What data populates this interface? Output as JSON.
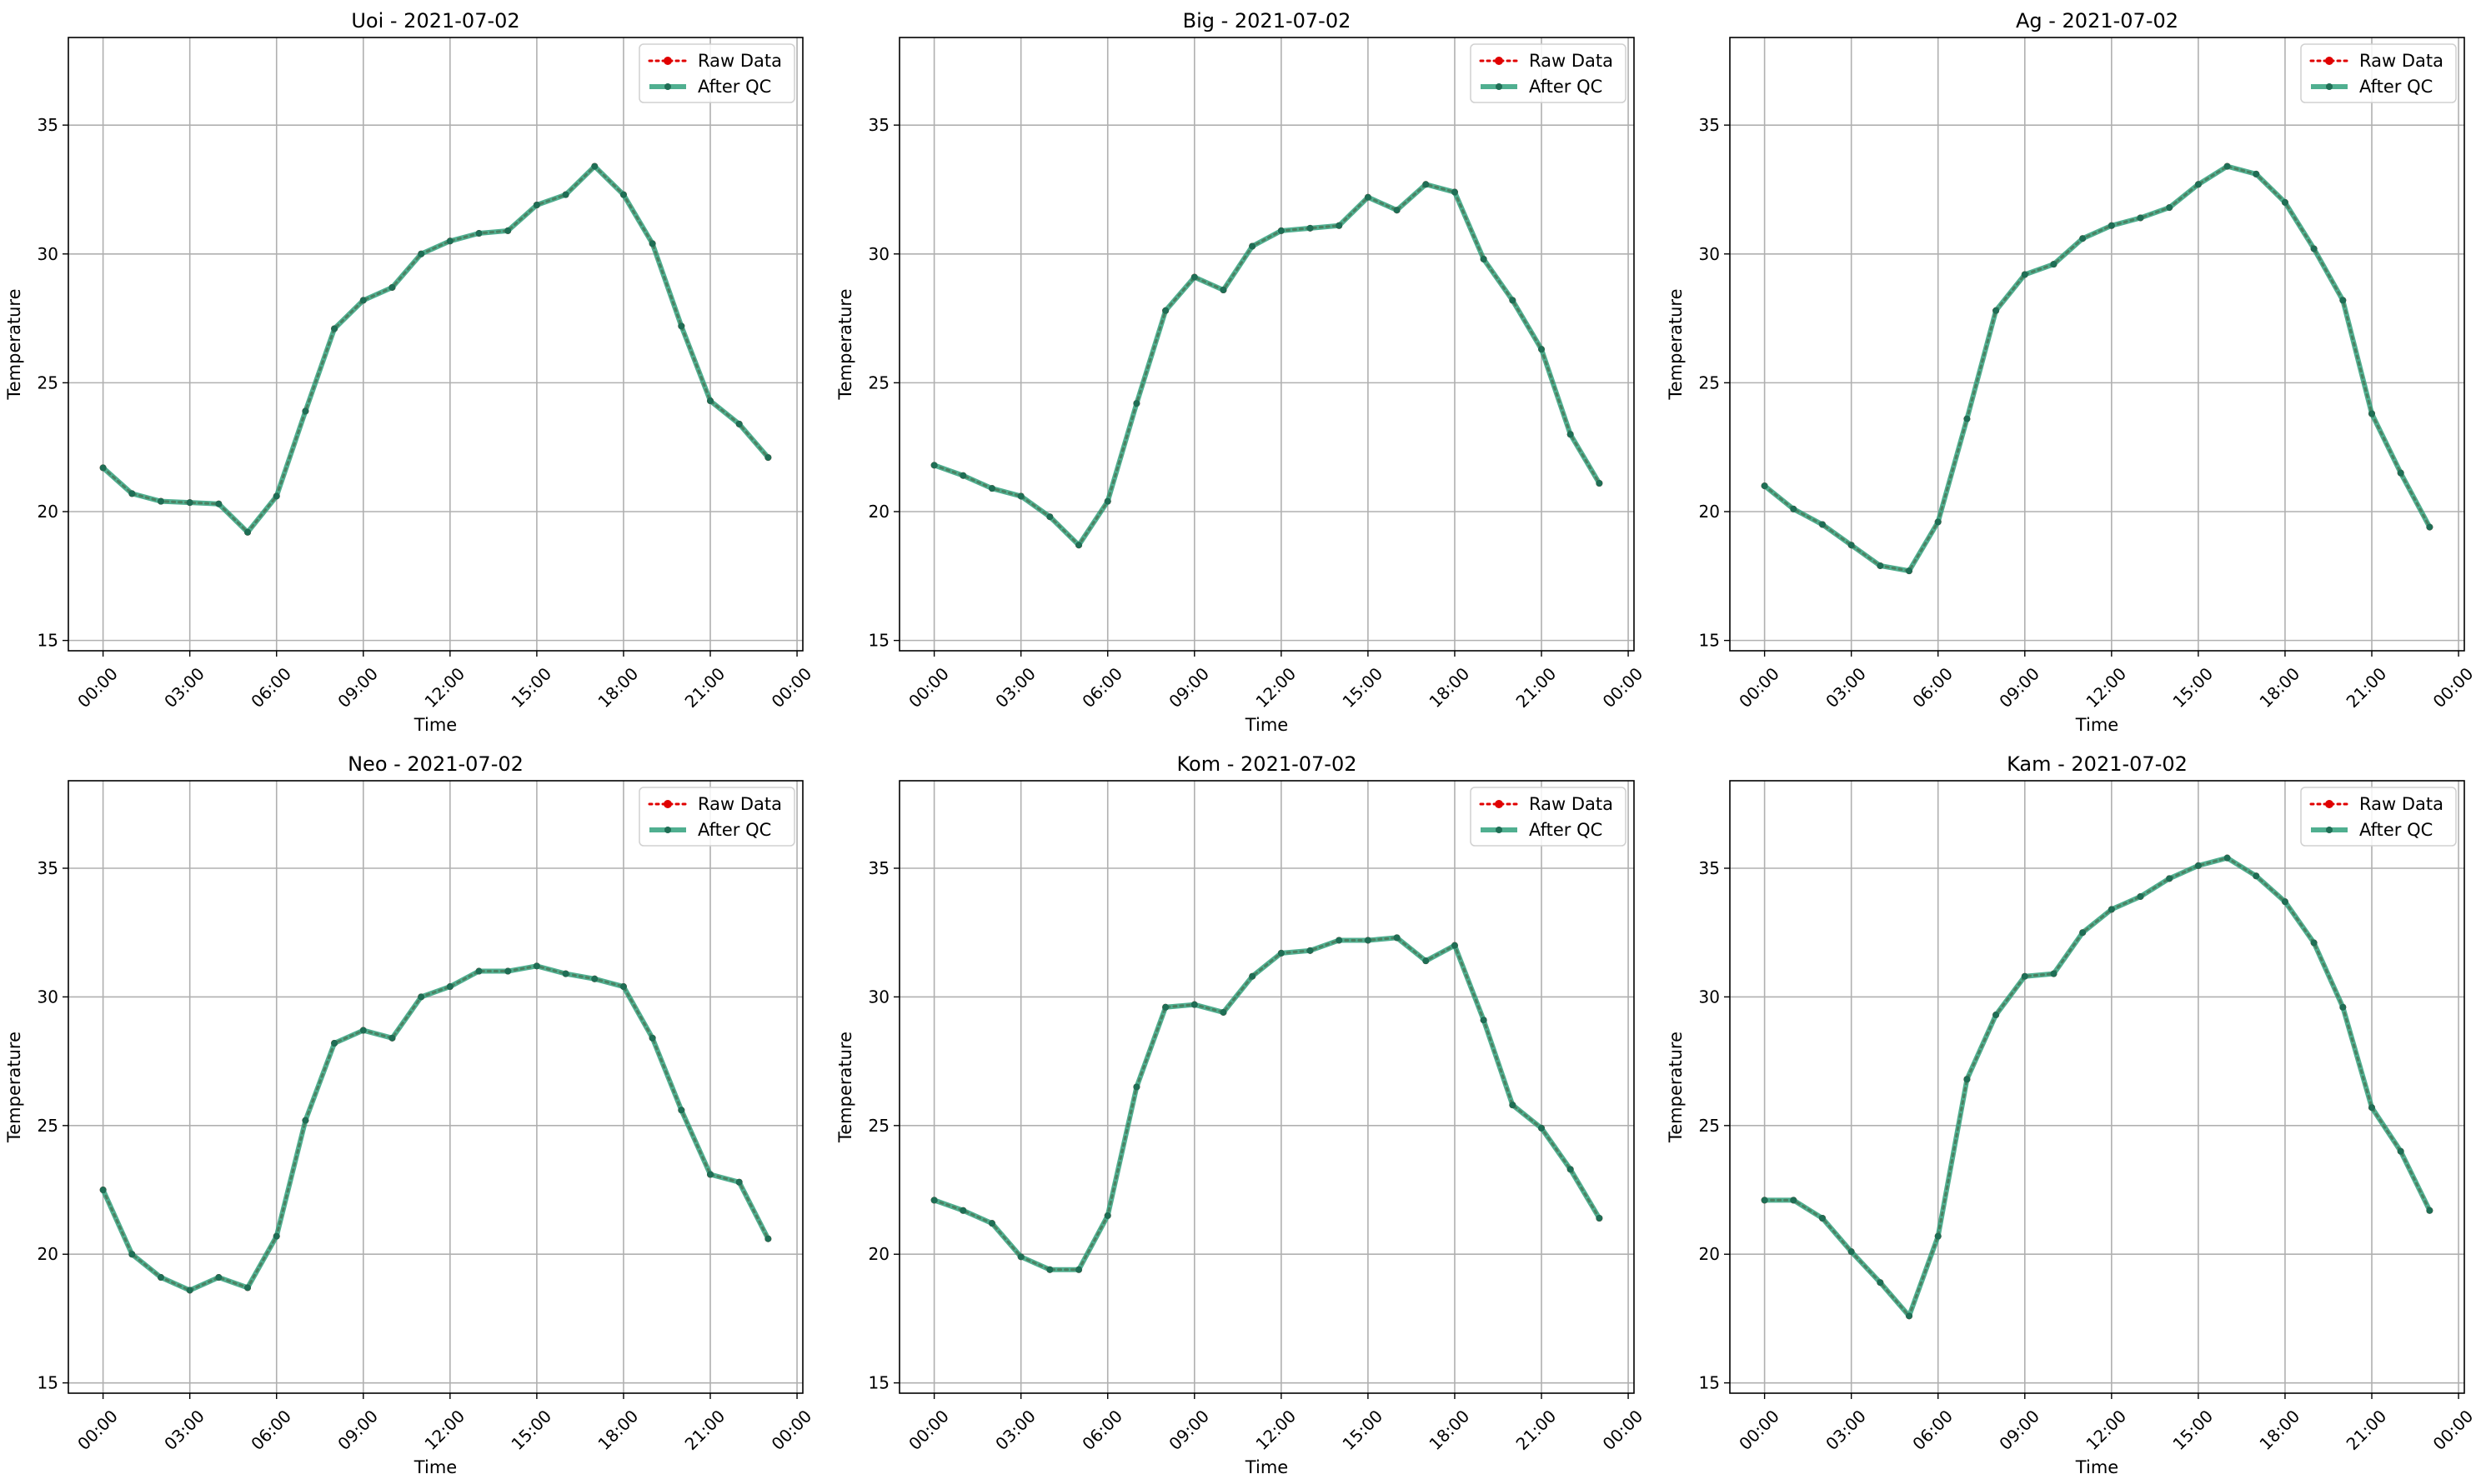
{
  "colors": {
    "raw": "#e00000",
    "qc": "#2a9d78",
    "qc_marker": "#1f6e55",
    "grid": "#b0b0b0",
    "axes": "#000000"
  },
  "chart_data": [
    {
      "type": "line",
      "title": "Uoi - 2021-07-02",
      "xlabel": "Time",
      "ylabel": "Temperature",
      "x_ticks": [
        "00:00",
        "03:00",
        "06:00",
        "09:00",
        "12:00",
        "15:00",
        "18:00",
        "21:00",
        "00:00"
      ],
      "y_ticks": [
        "15",
        "20",
        "25",
        "30",
        "35"
      ],
      "xlim": [
        -1.2,
        24.2
      ],
      "ylim": [
        14.6,
        38.4
      ],
      "grid": true,
      "legend_position": "top-right",
      "x_hours": [
        0,
        1,
        2,
        3,
        4,
        5,
        6,
        7,
        8,
        9,
        10,
        11,
        12,
        13,
        14,
        15,
        16,
        17,
        18,
        19,
        20,
        21,
        22,
        23
      ],
      "series": [
        {
          "name": "Raw Data",
          "style": "dotted-red-markers",
          "values": [
            21.7,
            20.7,
            20.4,
            20.35,
            20.3,
            19.2,
            20.6,
            23.9,
            27.1,
            28.2,
            28.7,
            30.0,
            30.5,
            30.8,
            30.9,
            31.9,
            32.3,
            33.4,
            32.3,
            30.4,
            27.2,
            24.3,
            23.4,
            22.1
          ]
        },
        {
          "name": "After QC",
          "style": "solid-green-markers",
          "values": [
            21.7,
            20.7,
            20.4,
            20.35,
            20.3,
            19.2,
            20.6,
            23.9,
            27.1,
            28.2,
            28.7,
            30.0,
            30.5,
            30.8,
            30.9,
            31.9,
            32.3,
            33.4,
            32.3,
            30.4,
            27.2,
            24.3,
            23.4,
            22.1
          ]
        }
      ]
    },
    {
      "type": "line",
      "title": "Big - 2021-07-02",
      "xlabel": "Time",
      "ylabel": "Temperature",
      "x_ticks": [
        "00:00",
        "03:00",
        "06:00",
        "09:00",
        "12:00",
        "15:00",
        "18:00",
        "21:00",
        "00:00"
      ],
      "y_ticks": [
        "15",
        "20",
        "25",
        "30",
        "35"
      ],
      "xlim": [
        -1.2,
        24.2
      ],
      "ylim": [
        14.6,
        38.4
      ],
      "grid": true,
      "legend_position": "top-right",
      "x_hours": [
        0,
        1,
        2,
        3,
        4,
        5,
        6,
        7,
        8,
        9,
        10,
        11,
        12,
        13,
        14,
        15,
        16,
        17,
        18,
        19,
        20,
        21,
        22,
        23
      ],
      "series": [
        {
          "name": "Raw Data",
          "style": "dotted-red-markers",
          "values": [
            21.8,
            21.4,
            20.9,
            20.6,
            19.8,
            18.7,
            20.4,
            24.2,
            27.8,
            29.1,
            28.6,
            30.3,
            30.9,
            31.0,
            31.1,
            32.2,
            31.7,
            32.7,
            32.4,
            29.8,
            28.2,
            26.3,
            23.0,
            21.1
          ]
        },
        {
          "name": "After QC",
          "style": "solid-green-markers",
          "values": [
            21.8,
            21.4,
            20.9,
            20.6,
            19.8,
            18.7,
            20.4,
            24.2,
            27.8,
            29.1,
            28.6,
            30.3,
            30.9,
            31.0,
            31.1,
            32.2,
            31.7,
            32.7,
            32.4,
            29.8,
            28.2,
            26.3,
            23.0,
            21.1
          ]
        }
      ]
    },
    {
      "type": "line",
      "title": "Ag - 2021-07-02",
      "xlabel": "Time",
      "ylabel": "Temperature",
      "x_ticks": [
        "00:00",
        "03:00",
        "06:00",
        "09:00",
        "12:00",
        "15:00",
        "18:00",
        "21:00",
        "00:00"
      ],
      "y_ticks": [
        "15",
        "20",
        "25",
        "30",
        "35"
      ],
      "xlim": [
        -1.2,
        24.2
      ],
      "ylim": [
        14.6,
        38.4
      ],
      "grid": true,
      "legend_position": "top-right",
      "x_hours": [
        0,
        1,
        2,
        3,
        4,
        5,
        6,
        7,
        8,
        9,
        10,
        11,
        12,
        13,
        14,
        15,
        16,
        17,
        18,
        19,
        20,
        21,
        22,
        23
      ],
      "series": [
        {
          "name": "Raw Data",
          "style": "dotted-red-markers",
          "values": [
            21.0,
            20.1,
            19.5,
            18.7,
            17.9,
            17.7,
            19.6,
            23.6,
            27.8,
            29.2,
            29.6,
            30.6,
            31.1,
            31.4,
            31.8,
            32.7,
            33.4,
            33.1,
            32.0,
            30.2,
            28.2,
            23.8,
            21.5,
            19.4
          ]
        },
        {
          "name": "After QC",
          "style": "solid-green-markers",
          "values": [
            21.0,
            20.1,
            19.5,
            18.7,
            17.9,
            17.7,
            19.6,
            23.6,
            27.8,
            29.2,
            29.6,
            30.6,
            31.1,
            31.4,
            31.8,
            32.7,
            33.4,
            33.1,
            32.0,
            30.2,
            28.2,
            23.8,
            21.5,
            19.4
          ]
        }
      ]
    },
    {
      "type": "line",
      "title": "Neo - 2021-07-02",
      "xlabel": "Time",
      "ylabel": "Temperature",
      "x_ticks": [
        "00:00",
        "03:00",
        "06:00",
        "09:00",
        "12:00",
        "15:00",
        "18:00",
        "21:00",
        "00:00"
      ],
      "y_ticks": [
        "15",
        "20",
        "25",
        "30",
        "35"
      ],
      "xlim": [
        -1.2,
        24.2
      ],
      "ylim": [
        14.6,
        38.4
      ],
      "grid": true,
      "legend_position": "top-right",
      "x_hours": [
        0,
        1,
        2,
        3,
        4,
        5,
        6,
        7,
        8,
        9,
        10,
        11,
        12,
        13,
        14,
        15,
        16,
        17,
        18,
        19,
        20,
        21,
        22,
        23
      ],
      "series": [
        {
          "name": "Raw Data",
          "style": "dotted-red-markers",
          "values": [
            22.5,
            20.0,
            19.1,
            18.6,
            19.1,
            18.7,
            20.7,
            25.2,
            28.2,
            28.7,
            28.4,
            30.0,
            30.4,
            31.0,
            31.0,
            31.2,
            30.9,
            30.7,
            30.4,
            28.4,
            25.6,
            23.1,
            22.8,
            20.6
          ]
        },
        {
          "name": "After QC",
          "style": "solid-green-markers",
          "values": [
            22.5,
            20.0,
            19.1,
            18.6,
            19.1,
            18.7,
            20.7,
            25.2,
            28.2,
            28.7,
            28.4,
            30.0,
            30.4,
            31.0,
            31.0,
            31.2,
            30.9,
            30.7,
            30.4,
            28.4,
            25.6,
            23.1,
            22.8,
            20.6
          ]
        }
      ]
    },
    {
      "type": "line",
      "title": "Kom - 2021-07-02",
      "xlabel": "Time",
      "ylabel": "Temperature",
      "x_ticks": [
        "00:00",
        "03:00",
        "06:00",
        "09:00",
        "12:00",
        "15:00",
        "18:00",
        "21:00",
        "00:00"
      ],
      "y_ticks": [
        "15",
        "20",
        "25",
        "30",
        "35"
      ],
      "xlim": [
        -1.2,
        24.2
      ],
      "ylim": [
        14.6,
        38.4
      ],
      "grid": true,
      "legend_position": "top-right",
      "x_hours": [
        0,
        1,
        2,
        3,
        4,
        5,
        6,
        7,
        8,
        9,
        10,
        11,
        12,
        13,
        14,
        15,
        16,
        17,
        18,
        19,
        20,
        21,
        22,
        23
      ],
      "series": [
        {
          "name": "Raw Data",
          "style": "dotted-red-markers",
          "values": [
            22.1,
            21.7,
            21.2,
            19.9,
            19.4,
            19.4,
            21.5,
            26.5,
            29.6,
            29.7,
            29.4,
            30.8,
            31.7,
            31.8,
            32.2,
            32.2,
            32.3,
            31.4,
            32.0,
            29.1,
            25.8,
            24.9,
            23.3,
            21.4
          ]
        },
        {
          "name": "After QC",
          "style": "solid-green-markers",
          "values": [
            22.1,
            21.7,
            21.2,
            19.9,
            19.4,
            19.4,
            21.5,
            26.5,
            29.6,
            29.7,
            29.4,
            30.8,
            31.7,
            31.8,
            32.2,
            32.2,
            32.3,
            31.4,
            32.0,
            29.1,
            25.8,
            24.9,
            23.3,
            21.4
          ]
        }
      ]
    },
    {
      "type": "line",
      "title": "Kam - 2021-07-02",
      "xlabel": "Time",
      "ylabel": "Temperature",
      "x_ticks": [
        "00:00",
        "03:00",
        "06:00",
        "09:00",
        "12:00",
        "15:00",
        "18:00",
        "21:00",
        "00:00"
      ],
      "y_ticks": [
        "15",
        "20",
        "25",
        "30",
        "35"
      ],
      "xlim": [
        -1.2,
        24.2
      ],
      "ylim": [
        14.6,
        38.4
      ],
      "grid": true,
      "legend_position": "top-right",
      "x_hours": [
        0,
        1,
        2,
        3,
        4,
        5,
        6,
        7,
        8,
        9,
        10,
        11,
        12,
        13,
        14,
        15,
        16,
        17,
        18,
        19,
        20,
        21,
        22,
        23
      ],
      "series": [
        {
          "name": "Raw Data",
          "style": "dotted-red-markers",
          "values": [
            22.1,
            22.1,
            21.4,
            20.1,
            18.9,
            17.6,
            20.7,
            26.8,
            29.3,
            30.8,
            30.9,
            32.5,
            33.4,
            33.9,
            34.6,
            35.1,
            35.4,
            34.7,
            33.7,
            32.1,
            29.6,
            25.7,
            24.0,
            21.7
          ]
        },
        {
          "name": "After QC",
          "style": "solid-green-markers",
          "values": [
            22.1,
            22.1,
            21.4,
            20.1,
            18.9,
            17.6,
            20.7,
            26.8,
            29.3,
            30.8,
            30.9,
            32.5,
            33.4,
            33.9,
            34.6,
            35.1,
            35.4,
            34.7,
            33.7,
            32.1,
            29.6,
            25.7,
            24.0,
            21.7
          ]
        }
      ]
    }
  ]
}
